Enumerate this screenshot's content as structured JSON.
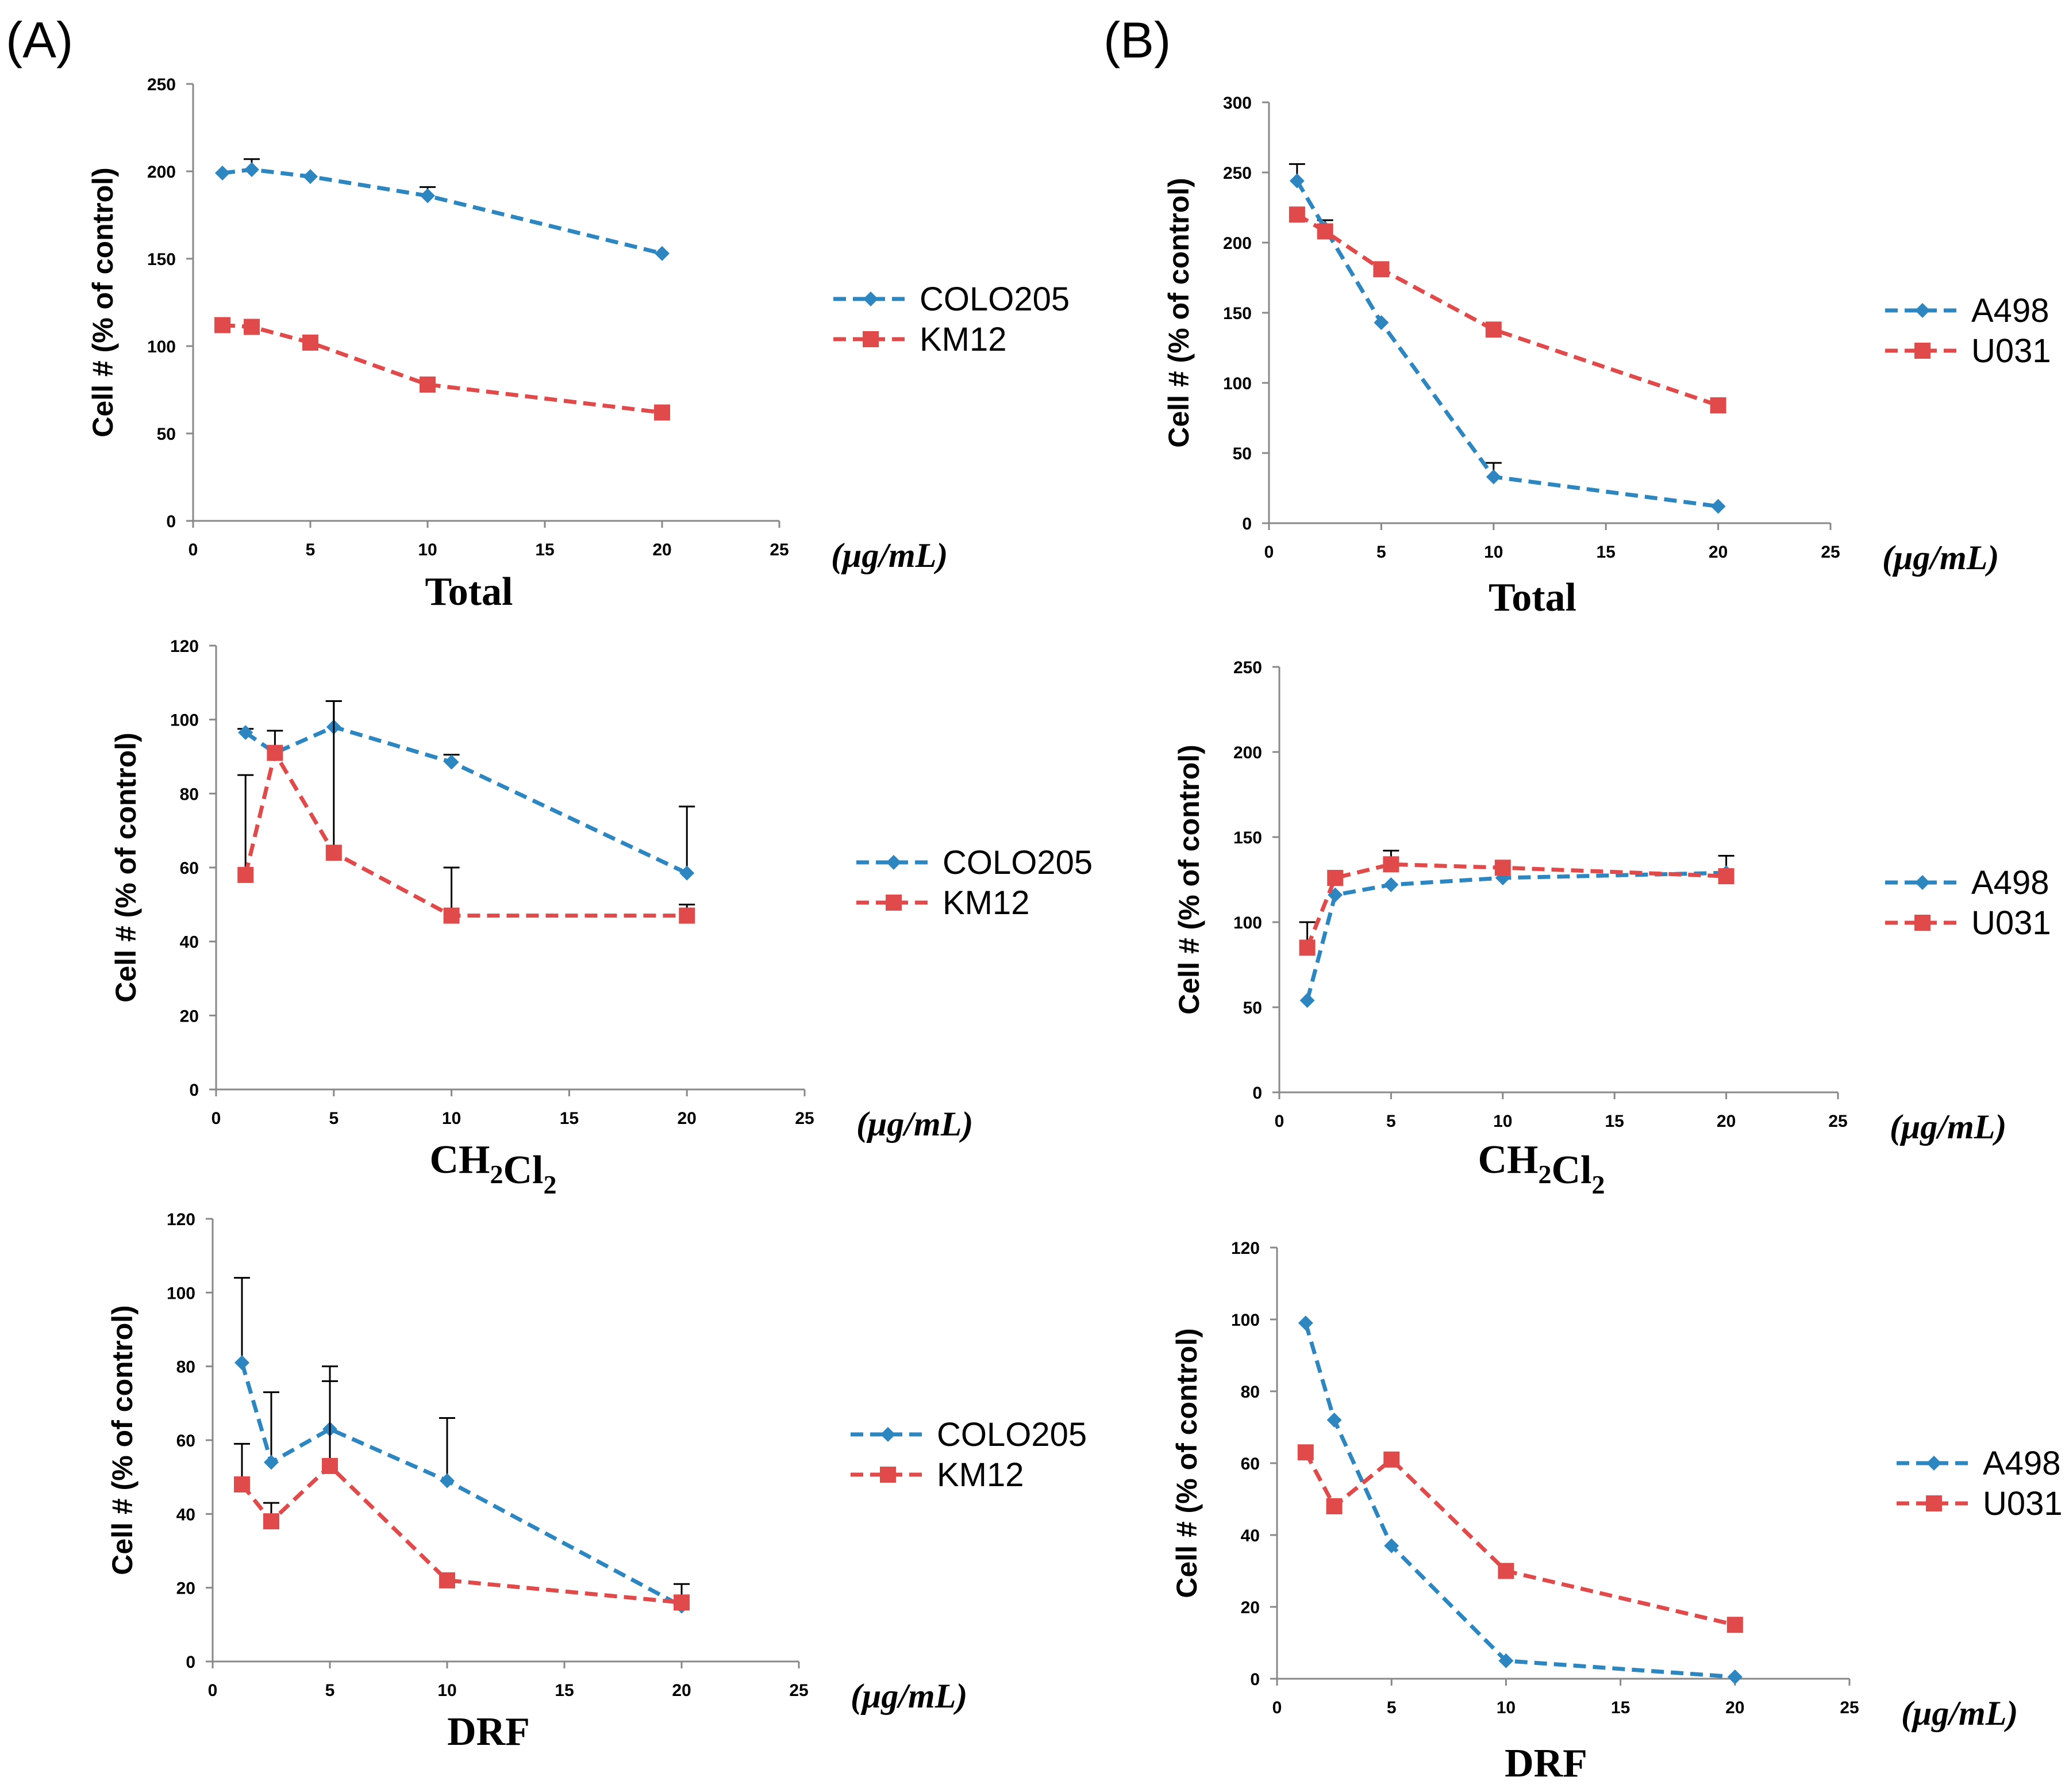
{
  "panels": {
    "a": "(A)",
    "b": "(B)"
  },
  "x_unit": "(μg/mL)",
  "colors": {
    "series1": "#2e86c1",
    "series2": "#e04a4a"
  },
  "chart_data": [
    {
      "id": "a-total",
      "type": "line",
      "panel": "A",
      "title": "Total",
      "ylabel": "Cell # (% of control)",
      "xlabel": "(μg/mL)",
      "xlim": [
        0,
        25
      ],
      "ylim": [
        0,
        250
      ],
      "xticks": [
        0,
        5,
        10,
        15,
        20,
        25
      ],
      "yticks": [
        0,
        50,
        100,
        150,
        200,
        250
      ],
      "legend_position": "right",
      "series": [
        {
          "name": "COLO205",
          "marker": "diamond",
          "x": [
            1.25,
            2.5,
            5,
            10,
            20
          ],
          "values": [
            199,
            201,
            197,
            186,
            153
          ],
          "err": [
            0,
            6,
            0,
            5,
            0
          ]
        },
        {
          "name": "KM12",
          "marker": "square",
          "x": [
            1.25,
            2.5,
            5,
            10,
            20
          ],
          "values": [
            112,
            111,
            102,
            78,
            62
          ],
          "err": [
            0,
            0,
            0,
            0,
            0
          ]
        }
      ]
    },
    {
      "id": "b-total",
      "type": "line",
      "panel": "B",
      "title": "Total",
      "ylabel": "Cell # (% of control)",
      "xlabel": "(μg/mL)",
      "xlim": [
        0,
        25
      ],
      "ylim": [
        0,
        300
      ],
      "xticks": [
        0,
        5,
        10,
        15,
        20,
        25
      ],
      "yticks": [
        0,
        50,
        100,
        150,
        200,
        250,
        300
      ],
      "legend_position": "right",
      "series": [
        {
          "name": "A498",
          "marker": "diamond",
          "x": [
            1.25,
            2.5,
            5,
            10,
            20
          ],
          "values": [
            244,
            210,
            143,
            33,
            12
          ],
          "err": [
            12,
            6,
            0,
            10,
            0
          ]
        },
        {
          "name": "U031",
          "marker": "square",
          "x": [
            1.25,
            2.5,
            5,
            10,
            20
          ],
          "values": [
            220,
            208,
            181,
            138,
            84
          ],
          "err": [
            0,
            0,
            0,
            0,
            0
          ]
        }
      ]
    },
    {
      "id": "a-ch2cl2",
      "type": "line",
      "panel": "A",
      "title": "CH2Cl2",
      "ylabel": "Cell # (% of control)",
      "xlabel": "(μg/mL)",
      "xlim": [
        0,
        25
      ],
      "ylim": [
        0,
        120
      ],
      "xticks": [
        0,
        5,
        10,
        15,
        20,
        25
      ],
      "yticks": [
        0,
        20,
        40,
        60,
        80,
        100,
        120
      ],
      "legend_position": "right",
      "series": [
        {
          "name": "COLO205",
          "marker": "diamond",
          "x": [
            1.25,
            2.5,
            5,
            10,
            20
          ],
          "values": [
            96.5,
            91,
            98,
            88.5,
            58.5
          ],
          "err": [
            1,
            0,
            7,
            2,
            18
          ]
        },
        {
          "name": "KM12",
          "marker": "square",
          "x": [
            1.25,
            2.5,
            5,
            10,
            20
          ],
          "values": [
            58,
            91,
            64,
            47,
            47
          ],
          "err": [
            27,
            6,
            41,
            13,
            3
          ]
        }
      ]
    },
    {
      "id": "b-ch2cl2",
      "type": "line",
      "panel": "B",
      "title": "CH2Cl2",
      "ylabel": "Cell # (% of control)",
      "xlabel": "(μg/mL)",
      "xlim": [
        0,
        25
      ],
      "ylim": [
        0,
        250
      ],
      "xticks": [
        0,
        5,
        10,
        15,
        20,
        25
      ],
      "yticks": [
        0,
        50,
        100,
        150,
        200,
        250
      ],
      "legend_position": "right",
      "series": [
        {
          "name": "A498",
          "marker": "diamond",
          "x": [
            1.25,
            2.5,
            5,
            10,
            20
          ],
          "values": [
            54,
            116,
            122,
            126,
            129
          ],
          "err": [
            0,
            0,
            0,
            0,
            10
          ]
        },
        {
          "name": "U031",
          "marker": "square",
          "x": [
            1.25,
            2.5,
            5,
            10,
            20
          ],
          "values": [
            85,
            126,
            134,
            132,
            127
          ],
          "err": [
            15,
            0,
            8,
            0,
            0
          ]
        }
      ]
    },
    {
      "id": "a-drf",
      "type": "line",
      "panel": "A",
      "title": "DRF",
      "ylabel": "Cell # (% of control)",
      "xlabel": "(μg/mL)",
      "xlim": [
        0,
        25
      ],
      "ylim": [
        0,
        120
      ],
      "xticks": [
        0,
        5,
        10,
        15,
        20,
        25
      ],
      "yticks": [
        0,
        20,
        40,
        60,
        80,
        100,
        120
      ],
      "legend_position": "right",
      "series": [
        {
          "name": "COLO205",
          "marker": "diamond",
          "x": [
            1.25,
            2.5,
            5,
            10,
            20
          ],
          "values": [
            81,
            54,
            63,
            49,
            15
          ],
          "err": [
            23,
            19,
            17,
            17,
            6
          ]
        },
        {
          "name": "KM12",
          "marker": "square",
          "x": [
            1.25,
            2.5,
            5,
            10,
            20
          ],
          "values": [
            48,
            38,
            53,
            22,
            16
          ],
          "err": [
            11,
            5,
            23,
            0,
            0
          ]
        }
      ]
    },
    {
      "id": "b-drf",
      "type": "line",
      "panel": "B",
      "title": "DRF",
      "ylabel": "Cell # (% of control)",
      "xlabel": "(μg/mL)",
      "xlim": [
        0,
        25
      ],
      "ylim": [
        0,
        120
      ],
      "xticks": [
        0,
        5,
        10,
        15,
        20,
        25
      ],
      "yticks": [
        0,
        20,
        40,
        60,
        80,
        100,
        120
      ],
      "legend_position": "right",
      "series": [
        {
          "name": "A498",
          "marker": "diamond",
          "x": [
            1.25,
            2.5,
            5,
            10,
            20
          ],
          "values": [
            99,
            72,
            37,
            5,
            0.5
          ],
          "err": [
            0,
            0,
            0,
            0,
            0
          ]
        },
        {
          "name": "U031",
          "marker": "square",
          "x": [
            1.25,
            2.5,
            5,
            10,
            20
          ],
          "values": [
            63,
            48,
            61,
            30,
            15
          ],
          "err": [
            0,
            0,
            0,
            0,
            0
          ]
        }
      ]
    }
  ]
}
